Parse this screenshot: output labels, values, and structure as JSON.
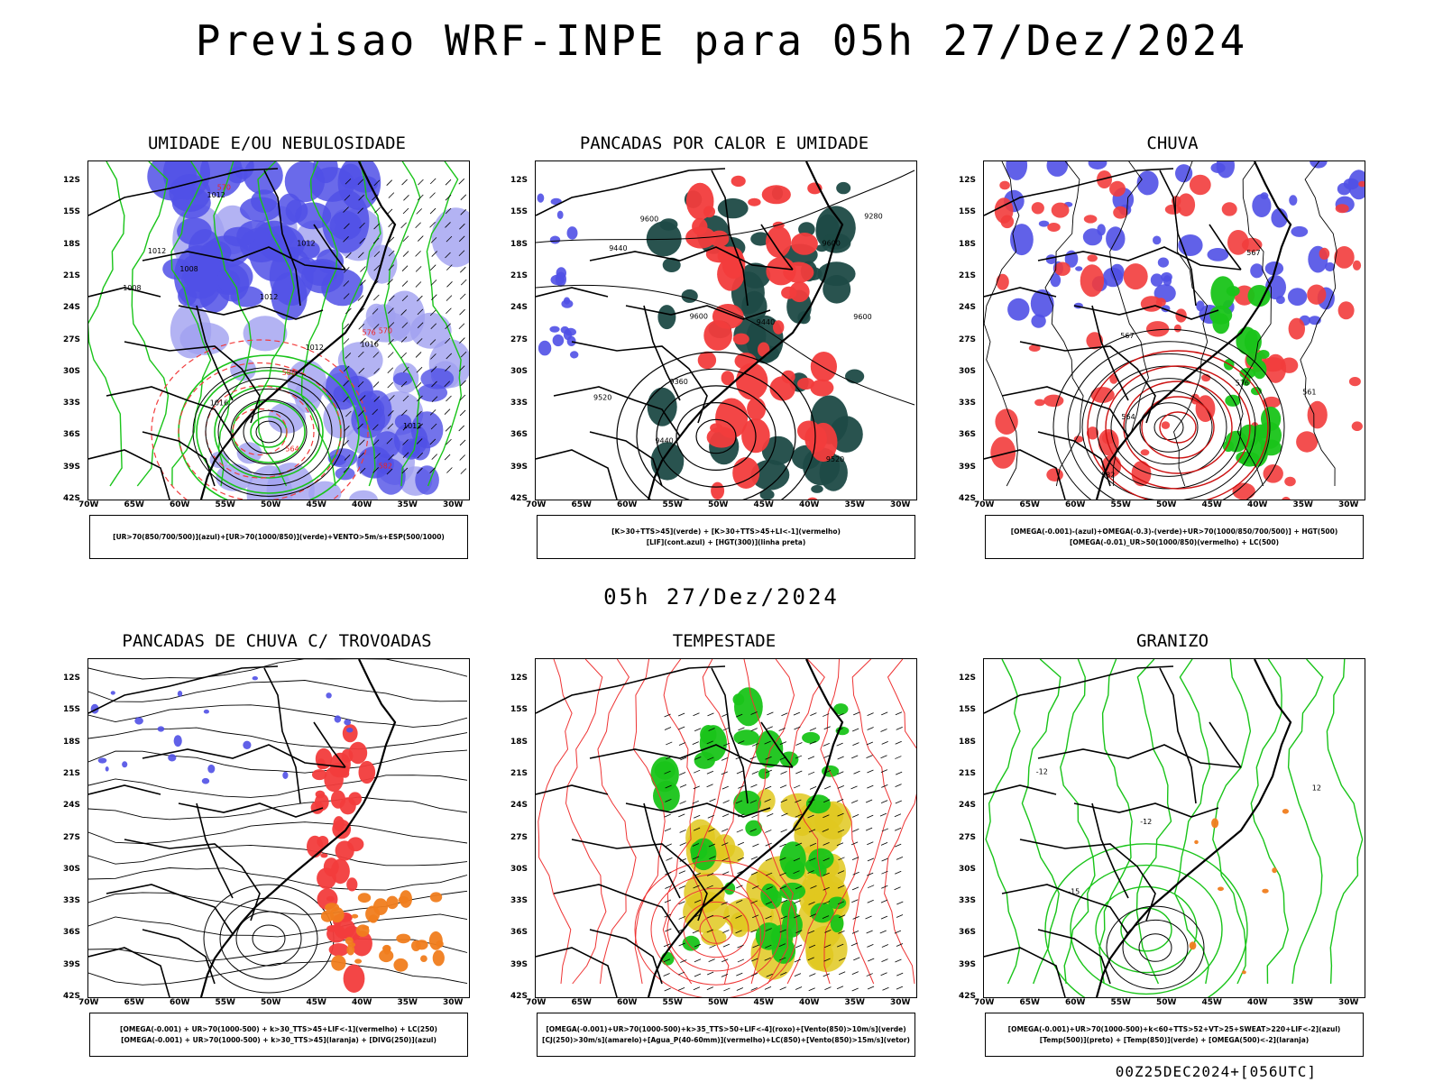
{
  "main_title": "Previsao WRF-INPE  para 05h 27/Dez/2024",
  "mid_title": "05h 27/Dez/2024",
  "stamp": "00Z25DEC2024+[056UTC]",
  "axes": {
    "lat_labels": [
      "12S",
      "15S",
      "18S",
      "21S",
      "24S",
      "27S",
      "30S",
      "33S",
      "36S",
      "39S",
      "42S"
    ],
    "lon_labels": [
      "70W",
      "65W",
      "60W",
      "55W",
      "50W",
      "45W",
      "40W",
      "35W",
      "30W"
    ]
  },
  "panels": [
    {
      "title": "UMIDADE E/OU NEBULOSIDADE",
      "legend": [
        "[UR>70(850/700/500)](azul)+[UR>70(1000/850)](verde)+VENTO>5m/s+ESP(500/1000)"
      ],
      "contour_labels": [
        "1008",
        "1012",
        "1012",
        "1012",
        "1016",
        "1012",
        "1008",
        "1012",
        "1012",
        "1016",
        "570",
        "576",
        "582",
        "570",
        "588",
        "564"
      ]
    },
    {
      "title": "PANCADAS POR CALOR E UMIDADE",
      "legend": [
        "[K>30+TTS>45](verde) + [K>30+TTS>45+LI<-1](vermelho)",
        "[LIF](cont.azul) + [HGT(300)](linha preta)"
      ],
      "contour_labels": [
        "9600",
        "9600",
        "9600",
        "9520",
        "9520",
        "9440",
        "9440",
        "9440",
        "9360",
        "9280",
        "9600"
      ]
    },
    {
      "title": "CHUVA",
      "legend": [
        "[OMEGA(-0.001)-(azul)+OMEGA(-0.3)-(verde)+UR>70(1000/850/700/500)] + HGT(500)",
        "[OMEGA(-0.01)_UR>50(1000/850)(vermelho) + LC(500)"
      ],
      "contour_labels": [
        "582",
        "576",
        "567",
        "564",
        "561",
        "567"
      ]
    },
    {
      "title": "PANCADAS DE CHUVA C/ TROVOADAS",
      "legend": [
        "[OMEGA(-0.001) + UR>70(1000-500) + k>30_TTS>45+LIF<-1](vermelho) + LC(250)",
        "[OMEGA(-0.001) + UR>70(1000-500) + k>30_TTS>45](laranja) + [DIVG(250)](azul)"
      ],
      "contour_labels": []
    },
    {
      "title": "TEMPESTADE",
      "legend": [
        "[OMEGA(-0.001)+UR>70(1000-500)+k>35_TTS>50+LIF<-4](roxo)+[Vento(850)>10m/s](verde)",
        "[CJ(250)>30m/s](amarelo)+[Agua_P(40-60mm)](vermelho)+LC(850)+[Vento(850)>15m/s](vetor)"
      ],
      "contour_labels": []
    },
    {
      "title": "GRANIZO",
      "legend": [
        "[OMEGA(-0.001)+UR>70(1000-500)+k<60+TTS>52+VT>25+SWEAT>220+LIF<-2](azul)",
        "[Temp(500)](preto) + [Temp(850)](verde) + [OMEGA(500)<-2](laranja)"
      ],
      "contour_labels": [
        "-12",
        "-12",
        "-15",
        "12"
      ]
    }
  ],
  "colors": {
    "blue": "#5050e6",
    "light_blue": "#a0a0f0",
    "green": "#19c419",
    "red": "#f23c3c",
    "dark_teal": "#1e4a46",
    "orange": "#f07d1e",
    "yellow": "#e1c81e"
  }
}
